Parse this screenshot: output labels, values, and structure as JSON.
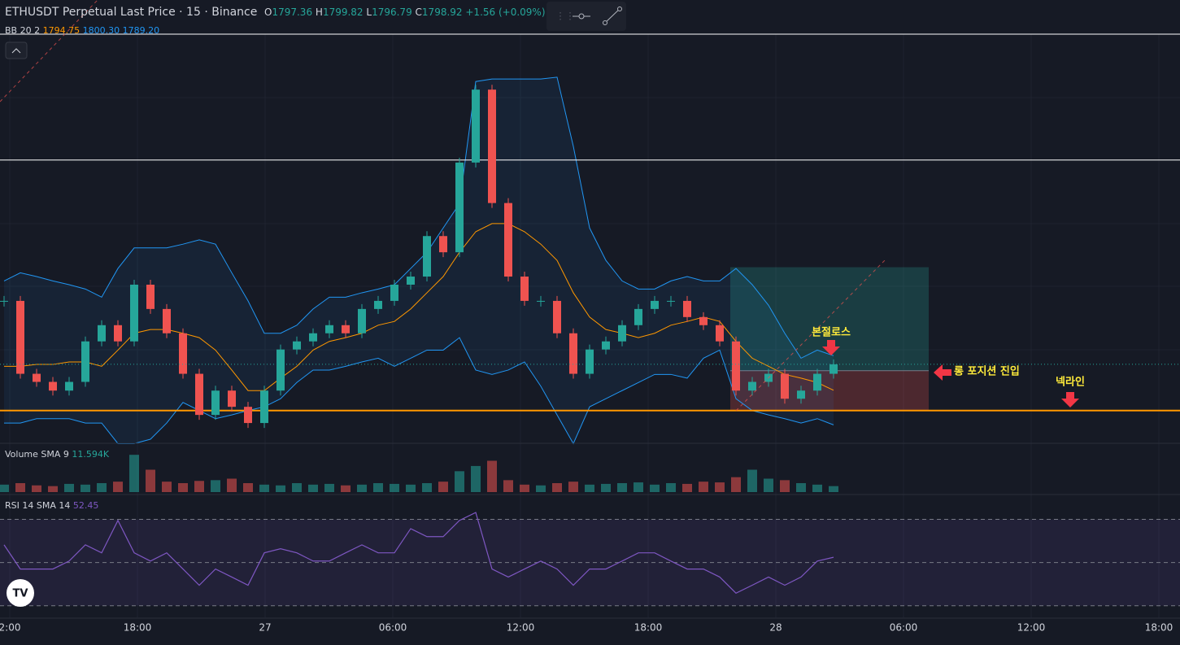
{
  "header": {
    "title": "ETHUSDT Perpetual Last Price · 15 · Binance",
    "ohlc": [
      {
        "label": "O",
        "value": "1797.36"
      },
      {
        "label": "H",
        "value": "1799.82"
      },
      {
        "label": "L",
        "value": "1796.79"
      },
      {
        "label": "C",
        "value": "1798.92"
      }
    ],
    "change": "+1.56 (+0.09%)",
    "bb": {
      "label": "BB 20 2",
      "values": [
        "1794.75",
        "1800.30",
        "1789.20"
      ]
    }
  },
  "volume_legend": {
    "label": "Volume SMA 9",
    "value": "11.594K"
  },
  "rsi_legend": {
    "label": "RSI 14 SMA 14",
    "value": "52.45"
  },
  "annotations": {
    "breakeven": "본절로스",
    "entry": "롱 포지션 진입",
    "neckline": "넥라인"
  },
  "xaxis": [
    "2:00",
    "18:00",
    "27",
    "06:00",
    "12:00",
    "18:00",
    "28",
    "06:00",
    "12:00",
    "18:00"
  ],
  "chart": {
    "ylim": [
      1786.9,
      1851.9
    ],
    "colors": {
      "up": "#26a69a",
      "down": "#ef5350",
      "bb_band": "#2196f3",
      "bb_mid": "#ff9800",
      "rsi": "#7e57c2"
    },
    "closes": [
      1809.1,
      1797.4,
      1796.1,
      1794.7,
      1796.1,
      1802.6,
      1805.2,
      1802.6,
      1811.7,
      1807.8,
      1803.9,
      1797.4,
      1790.8,
      1794.7,
      1792.1,
      1789.5,
      1794.7,
      1801.3,
      1802.6,
      1803.9,
      1805.2,
      1803.9,
      1807.8,
      1809.1,
      1811.7,
      1813.0,
      1819.5,
      1816.9,
      1831.3,
      1843.0,
      1824.8,
      1813.0,
      1809.1,
      1809.1,
      1803.9,
      1797.4,
      1801.3,
      1802.6,
      1805.2,
      1807.8,
      1809.1,
      1809.1,
      1806.5,
      1805.2,
      1802.6,
      1794.7,
      1796.1,
      1797.4,
      1793.4,
      1794.7,
      1797.4,
      1798.92
    ],
    "bb": {
      "upper": [
        1812.3,
        1813.6,
        1813.0,
        1812.3,
        1811.7,
        1811.0,
        1809.7,
        1814.3,
        1817.6,
        1817.6,
        1817.6,
        1818.2,
        1818.9,
        1818.2,
        1813.6,
        1809.1,
        1803.9,
        1803.9,
        1805.2,
        1807.8,
        1809.7,
        1809.7,
        1810.4,
        1811.0,
        1811.7,
        1814.3,
        1816.9,
        1820.8,
        1824.7,
        1844.3,
        1844.7,
        1844.7,
        1844.7,
        1844.7,
        1845.0,
        1833.9,
        1820.8,
        1815.6,
        1812.3,
        1811.0,
        1811.0,
        1812.3,
        1813.0,
        1812.3,
        1812.3,
        1814.3,
        1811.7,
        1808.4,
        1803.9,
        1799.9,
        1801.2,
        1800.3
      ],
      "middle": [
        1798.6,
        1798.6,
        1798.9,
        1798.9,
        1799.3,
        1799.3,
        1798.6,
        1801.2,
        1803.9,
        1804.5,
        1804.5,
        1803.9,
        1803.2,
        1801.2,
        1798.0,
        1794.7,
        1794.7,
        1796.7,
        1798.6,
        1801.2,
        1802.6,
        1803.2,
        1803.9,
        1805.2,
        1805.8,
        1807.8,
        1810.4,
        1813.0,
        1816.9,
        1820.2,
        1821.5,
        1821.5,
        1820.2,
        1818.2,
        1815.6,
        1810.4,
        1806.5,
        1804.5,
        1803.9,
        1803.2,
        1803.9,
        1805.2,
        1805.8,
        1806.5,
        1805.8,
        1802.6,
        1799.9,
        1798.6,
        1797.3,
        1796.7,
        1796.0,
        1794.75
      ],
      "lower": [
        1789.5,
        1789.5,
        1790.2,
        1790.2,
        1790.2,
        1789.5,
        1789.5,
        1786.2,
        1786.2,
        1786.9,
        1789.5,
        1792.8,
        1791.5,
        1790.2,
        1790.8,
        1791.5,
        1792.1,
        1793.4,
        1796.0,
        1798.0,
        1798.0,
        1798.6,
        1799.3,
        1799.9,
        1798.6,
        1799.9,
        1801.2,
        1801.2,
        1803.2,
        1798.0,
        1797.3,
        1798.0,
        1799.3,
        1795.4,
        1790.8,
        1786.2,
        1792.1,
        1793.4,
        1794.7,
        1796.0,
        1797.3,
        1797.3,
        1796.7,
        1799.9,
        1801.2,
        1793.4,
        1791.5,
        1790.8,
        1790.2,
        1789.5,
        1790.2,
        1789.2
      ]
    },
    "levels": [
      {
        "price": 1851.9,
        "color": "#ffffff"
      },
      {
        "price": 1831.7,
        "color": "#ffffff"
      },
      {
        "price": 1791.5,
        "color": "#ff9800"
      }
    ],
    "position": {
      "target": 1814.5,
      "entry": 1797.9,
      "stop": 1791.5
    },
    "vlim": [
      0,
      60
    ],
    "volume": [
      10,
      12,
      9,
      8,
      11,
      10,
      12,
      14,
      50,
      30,
      14,
      12,
      15,
      16,
      18,
      12,
      10,
      9,
      12,
      10,
      11,
      9,
      10,
      12,
      11,
      10,
      12,
      14,
      28,
      35,
      42,
      16,
      10,
      9,
      12,
      14,
      10,
      11,
      12,
      13,
      10,
      12,
      11,
      14,
      13,
      20,
      30,
      18,
      16,
      12,
      10,
      8
    ],
    "rsi": {
      "lim": [
        25,
        80
      ],
      "levels": [
        30,
        50,
        70
      ],
      "values": [
        58.2,
        47.0,
        47.0,
        47.0,
        50.7,
        58.2,
        54.5,
        69.5,
        54.5,
        50.7,
        54.5,
        47.0,
        39.5,
        47.0,
        43.3,
        39.5,
        54.5,
        56.4,
        54.5,
        50.7,
        50.7,
        54.5,
        58.2,
        54.5,
        54.5,
        65.7,
        62.0,
        62.0,
        69.5,
        73.2,
        47.0,
        43.3,
        47.0,
        50.7,
        47.0,
        39.5,
        47.0,
        47.0,
        50.7,
        54.5,
        54.5,
        50.7,
        47.0,
        47.0,
        43.3,
        35.8,
        39.5,
        43.3,
        39.5,
        43.3,
        50.7,
        52.45
      ]
    }
  }
}
